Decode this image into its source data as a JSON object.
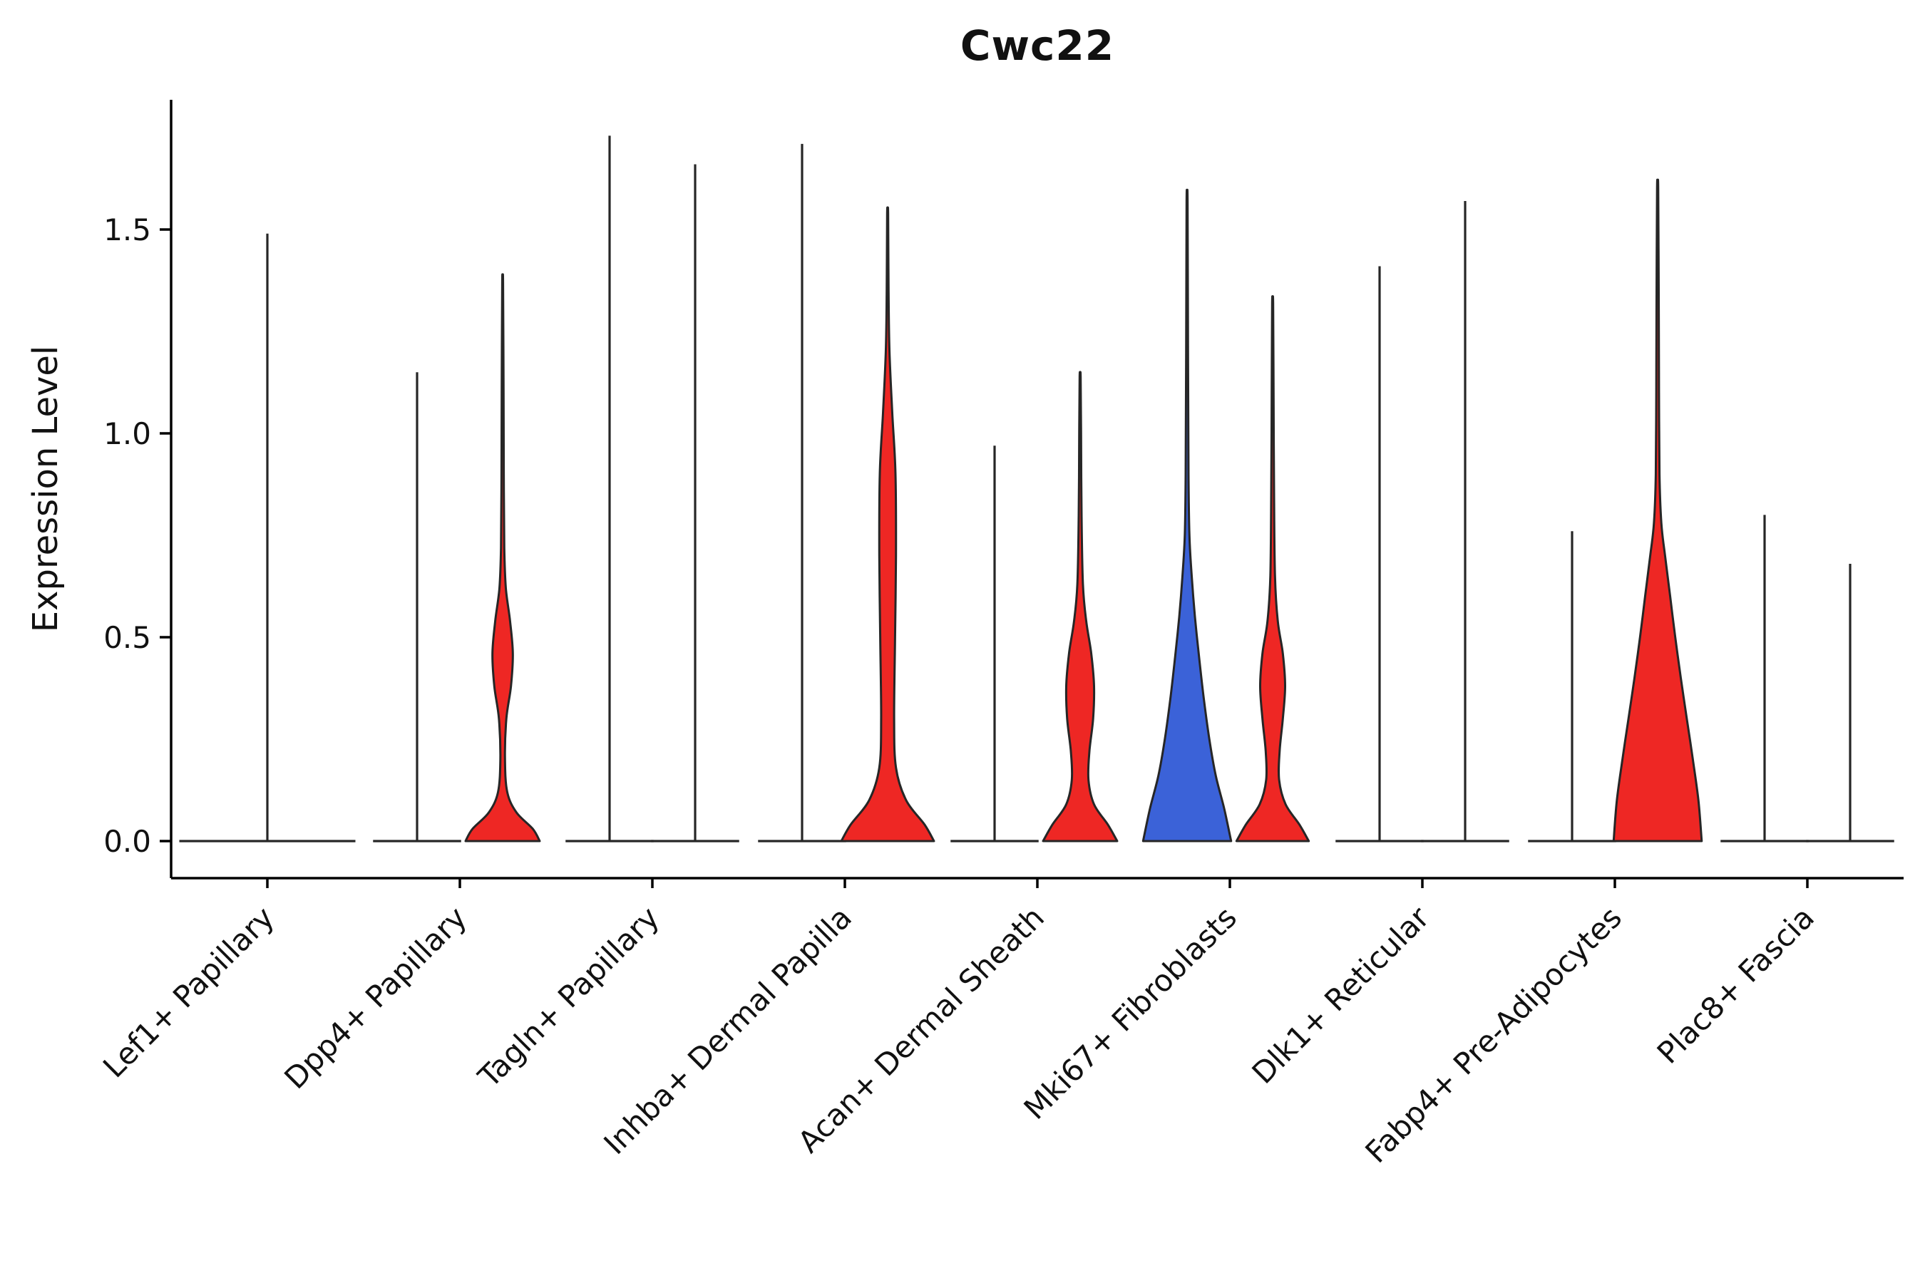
{
  "chart_data": {
    "type": "violin",
    "title": "Cwc22",
    "ylabel": "Expression Level",
    "xlabel": "",
    "ylim": [
      -0.09,
      1.82
    ],
    "yticks": [
      0.0,
      0.5,
      1.0,
      1.5
    ],
    "ytick_labels": [
      "0.0",
      "0.5",
      "1.0",
      "1.5"
    ],
    "grid": false,
    "legend": "none",
    "groups_per_category": 2,
    "colors": {
      "red": "#ee2724",
      "blue": "#3b62d8",
      "outline": "#262626",
      "axis": "#000000",
      "text": "#111111"
    },
    "categories": [
      "Lef1+ Papillary",
      "Dpp4+ Papillary",
      "Tagln+ Papillary",
      "Inhba+ Dermal Papilla",
      "Acan+ Dermal Sheath",
      "Mki67+ Fibroblasts",
      "Dlk1+ Reticular",
      "Fabp4+ Pre-Adipocytes",
      "Plac8+ Fascia"
    ],
    "violins": [
      {
        "category": "Lef1+ Papillary",
        "parts": [
          {
            "slot": "center",
            "kind": "line",
            "max": 1.49,
            "base_halfwidth": 1.9
          }
        ]
      },
      {
        "category": "Dpp4+ Papillary",
        "parts": [
          {
            "slot": "left",
            "kind": "line",
            "max": 1.15,
            "base_halfwidth": 0.95
          },
          {
            "slot": "right",
            "kind": "violin",
            "fill": "red",
            "max": 1.37,
            "profile": [
              [
                0,
                0.8
              ],
              [
                0.03,
                0.65
              ],
              [
                0.07,
                0.3
              ],
              [
                0.12,
                0.1
              ],
              [
                0.2,
                0.05
              ],
              [
                0.3,
                0.08
              ],
              [
                0.38,
                0.18
              ],
              [
                0.46,
                0.22
              ],
              [
                0.54,
                0.16
              ],
              [
                0.62,
                0.07
              ],
              [
                0.72,
                0.035
              ],
              [
                0.9,
                0.025
              ],
              [
                1.1,
                0.02
              ],
              [
                1.37,
                0.01
              ]
            ]
          }
        ]
      },
      {
        "category": "Tagln+ Papillary",
        "parts": [
          {
            "slot": "left",
            "kind": "line",
            "max": 1.73,
            "base_halfwidth": 0.95
          },
          {
            "slot": "right",
            "kind": "line",
            "max": 1.66,
            "base_halfwidth": 0.95
          }
        ]
      },
      {
        "category": "Inhba+ Dermal Papilla",
        "parts": [
          {
            "slot": "left",
            "kind": "line",
            "max": 1.71,
            "base_halfwidth": 0.95
          },
          {
            "slot": "right",
            "kind": "violin",
            "fill": "red",
            "max": 1.54,
            "profile": [
              [
                0,
                1.0
              ],
              [
                0.04,
                0.8
              ],
              [
                0.1,
                0.4
              ],
              [
                0.18,
                0.18
              ],
              [
                0.3,
                0.14
              ],
              [
                0.5,
                0.16
              ],
              [
                0.7,
                0.18
              ],
              [
                0.9,
                0.17
              ],
              [
                1.05,
                0.1
              ],
              [
                1.2,
                0.04
              ],
              [
                1.35,
                0.02
              ],
              [
                1.54,
                0.01
              ]
            ]
          }
        ]
      },
      {
        "category": "Acan+ Dermal Sheath",
        "parts": [
          {
            "slot": "left",
            "kind": "line",
            "max": 0.97,
            "base_halfwidth": 0.95
          },
          {
            "slot": "right",
            "kind": "violin",
            "fill": "red",
            "max": 1.14,
            "profile": [
              [
                0,
                0.8
              ],
              [
                0.04,
                0.6
              ],
              [
                0.09,
                0.3
              ],
              [
                0.15,
                0.18
              ],
              [
                0.22,
                0.2
              ],
              [
                0.3,
                0.28
              ],
              [
                0.38,
                0.3
              ],
              [
                0.46,
                0.24
              ],
              [
                0.54,
                0.13
              ],
              [
                0.63,
                0.06
              ],
              [
                0.8,
                0.03
              ],
              [
                1.0,
                0.02
              ],
              [
                1.14,
                0.01
              ]
            ]
          }
        ]
      },
      {
        "category": "Mki67+ Fibroblasts",
        "parts": [
          {
            "slot": "left",
            "kind": "violin",
            "fill": "blue",
            "max": 1.57,
            "profile": [
              [
                0,
                0.95
              ],
              [
                0.08,
                0.8
              ],
              [
                0.16,
                0.62
              ],
              [
                0.25,
                0.48
              ],
              [
                0.35,
                0.36
              ],
              [
                0.45,
                0.26
              ],
              [
                0.55,
                0.17
              ],
              [
                0.65,
                0.1
              ],
              [
                0.75,
                0.05
              ],
              [
                0.9,
                0.03
              ],
              [
                1.2,
                0.02
              ],
              [
                1.57,
                0.01
              ]
            ]
          },
          {
            "slot": "right",
            "kind": "violin",
            "fill": "red",
            "max": 1.32,
            "profile": [
              [
                0,
                0.78
              ],
              [
                0.04,
                0.58
              ],
              [
                0.09,
                0.28
              ],
              [
                0.15,
                0.14
              ],
              [
                0.22,
                0.15
              ],
              [
                0.3,
                0.22
              ],
              [
                0.38,
                0.27
              ],
              [
                0.46,
                0.22
              ],
              [
                0.54,
                0.11
              ],
              [
                0.65,
                0.05
              ],
              [
                0.85,
                0.03
              ],
              [
                1.1,
                0.02
              ],
              [
                1.32,
                0.01
              ]
            ]
          }
        ]
      },
      {
        "category": "Dlk1+ Reticular",
        "parts": [
          {
            "slot": "left",
            "kind": "line",
            "max": 1.41,
            "base_halfwidth": 0.95
          },
          {
            "slot": "right",
            "kind": "line",
            "max": 1.57,
            "base_halfwidth": 0.95
          }
        ]
      },
      {
        "category": "Fabp4+ Pre-Adipocytes",
        "parts": [
          {
            "slot": "left",
            "kind": "line",
            "max": 0.76,
            "base_halfwidth": 0.95
          },
          {
            "slot": "right",
            "kind": "violin",
            "fill": "red",
            "max": 1.6,
            "profile": [
              [
                0,
                0.95
              ],
              [
                0.1,
                0.88
              ],
              [
                0.2,
                0.76
              ],
              [
                0.3,
                0.63
              ],
              [
                0.4,
                0.5
              ],
              [
                0.5,
                0.38
              ],
              [
                0.6,
                0.27
              ],
              [
                0.7,
                0.16
              ],
              [
                0.78,
                0.08
              ],
              [
                0.9,
                0.04
              ],
              [
                1.1,
                0.03
              ],
              [
                1.3,
                0.025
              ],
              [
                1.6,
                0.012
              ]
            ]
          }
        ]
      },
      {
        "category": "Plac8+ Fascia",
        "parts": [
          {
            "slot": "left",
            "kind": "line",
            "max": 0.8,
            "base_halfwidth": 0.95
          },
          {
            "slot": "right",
            "kind": "line",
            "max": 0.68,
            "base_halfwidth": 0.95
          }
        ]
      }
    ]
  }
}
